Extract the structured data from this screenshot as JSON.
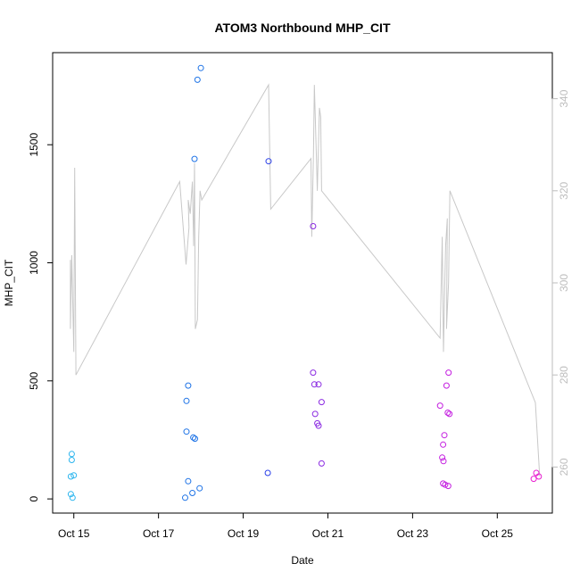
{
  "chart_data": {
    "type": "scatter",
    "title": "ATOM3 Northbound MHP_CIT",
    "xlabel": "Date",
    "ylabel": "MHP_CIT",
    "x_ticks": [
      {
        "x": 14.8,
        "label": "Oct 15"
      },
      {
        "x": 16.8,
        "label": "Oct 17"
      },
      {
        "x": 18.8,
        "label": "Oct 19"
      },
      {
        "x": 20.8,
        "label": "Oct 21"
      },
      {
        "x": 22.8,
        "label": "Oct 23"
      },
      {
        "x": 24.8,
        "label": "Oct 25"
      }
    ],
    "xlim": [
      14.3,
      26.1
    ],
    "ylim": [
      -60,
      1890
    ],
    "y_ticks": [
      0,
      500,
      1000,
      1500
    ],
    "y2lim": [
      250,
      350
    ],
    "y2_ticks": [
      260,
      280,
      300,
      320,
      340
    ],
    "colors": {
      "line": "#c8c8c8",
      "right_axis": "#bdbdbd",
      "frame": "#000000"
    },
    "series": [
      {
        "color": "#2bb5ee",
        "points": [
          [
            14.75,
            190
          ],
          [
            14.75,
            165
          ],
          [
            14.73,
            95
          ],
          [
            14.8,
            100
          ],
          [
            14.73,
            20
          ],
          [
            14.77,
            5
          ]
        ]
      },
      {
        "color": "#1e73e6",
        "points": [
          [
            17.5,
            480
          ],
          [
            17.46,
            415
          ],
          [
            17.46,
            285
          ],
          [
            17.62,
            260
          ],
          [
            17.66,
            255
          ],
          [
            17.5,
            75
          ],
          [
            17.77,
            45
          ],
          [
            17.6,
            25
          ],
          [
            17.43,
            5
          ],
          [
            17.65,
            1440
          ],
          [
            17.72,
            1775
          ],
          [
            17.8,
            1825
          ]
        ]
      },
      {
        "color": "#2a3fe8",
        "points": [
          [
            19.4,
            1430
          ],
          [
            19.38,
            110
          ]
        ]
      },
      {
        "color": "#8b2be2",
        "points": [
          [
            20.45,
            1155
          ],
          [
            20.45,
            535
          ],
          [
            20.48,
            485
          ],
          [
            20.58,
            485
          ],
          [
            20.65,
            410
          ],
          [
            20.5,
            360
          ],
          [
            20.55,
            320
          ],
          [
            20.58,
            310
          ],
          [
            20.65,
            150
          ]
        ]
      },
      {
        "color": "#c41fe0",
        "points": [
          [
            23.45,
            395
          ],
          [
            23.55,
            270
          ],
          [
            23.52,
            230
          ],
          [
            23.5,
            175
          ],
          [
            23.53,
            160
          ],
          [
            23.6,
            480
          ],
          [
            23.65,
            535
          ],
          [
            23.63,
            365
          ],
          [
            23.67,
            360
          ],
          [
            23.52,
            65
          ],
          [
            23.57,
            60
          ],
          [
            23.64,
            55
          ]
        ]
      },
      {
        "color": "#e81fd0",
        "points": [
          [
            25.72,
            110
          ],
          [
            25.78,
            95
          ],
          [
            25.66,
            85
          ]
        ]
      }
    ],
    "line_series": {
      "axis": "right",
      "points": [
        [
          14.72,
          305
        ],
        [
          14.72,
          290
        ],
        [
          14.75,
          306
        ],
        [
          14.8,
          285
        ],
        [
          14.82,
          325
        ],
        [
          14.85,
          280
        ],
        [
          17.3,
          322
        ],
        [
          17.45,
          304
        ],
        [
          17.52,
          312
        ],
        [
          17.5,
          318
        ],
        [
          17.55,
          315
        ],
        [
          17.6,
          322
        ],
        [
          17.63,
          308
        ],
        [
          17.65,
          326
        ],
        [
          17.67,
          290
        ],
        [
          17.72,
          292
        ],
        [
          17.75,
          310
        ],
        [
          17.78,
          320
        ],
        [
          17.82,
          318
        ],
        [
          19.4,
          343
        ],
        [
          19.45,
          316
        ],
        [
          20.4,
          327
        ],
        [
          20.42,
          310
        ],
        [
          20.46,
          328
        ],
        [
          20.48,
          343
        ],
        [
          20.52,
          330
        ],
        [
          20.55,
          320
        ],
        [
          20.6,
          338
        ],
        [
          20.63,
          336
        ],
        [
          20.65,
          320
        ],
        [
          23.45,
          288
        ],
        [
          23.5,
          310
        ],
        [
          23.53,
          285
        ],
        [
          23.56,
          300
        ],
        [
          23.58,
          308
        ],
        [
          23.62,
          314
        ],
        [
          23.6,
          290
        ],
        [
          23.65,
          300
        ],
        [
          23.68,
          320
        ],
        [
          25.7,
          274
        ],
        [
          25.8,
          258
        ]
      ]
    }
  }
}
